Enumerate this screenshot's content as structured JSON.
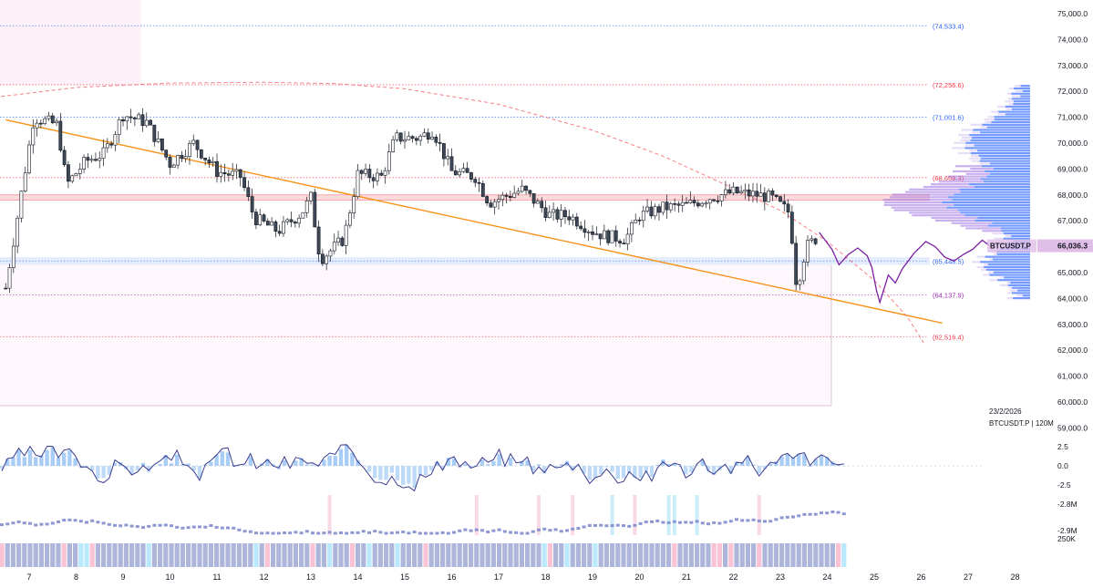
{
  "colors": {
    "up": "#ffffff",
    "down": "#3d4957",
    "wick": "#131722",
    "trendline": "#f7931a",
    "arc": "#f77c80",
    "projection": "#7b1fa2",
    "level_blue": "#2962ff",
    "level_red": "#f23645",
    "level_purple": "#9c27b0",
    "rect_pink": "#fce4f3",
    "vp_blue": "#2962ff",
    "vp_purple": "#9c6fe0",
    "osc_line": "#3a3c8f",
    "hist_pos": "#9ec8f5",
    "hist_neg": "#b7d6f7",
    "grid": "#f0f3fa",
    "price_tag_bg": "#e1bee7"
  },
  "chart_data": {
    "type": "candlestick",
    "symbol": "BTCUSDT.P",
    "timeframe_label": "BTCUSDT.P | 120M",
    "date_label": "23/2/2026",
    "last_price": "66,036.3",
    "price_axis": {
      "ylim": [
        59800,
        75400
      ],
      "ticks": [
        "75,000.0",
        "74,000.0",
        "73,000.0",
        "72,000.0",
        "71,000.0",
        "70,000.0",
        "69,000.0",
        "68,000.0",
        "67,000.0",
        "66,000.0",
        "65,000.0",
        "64,000.0",
        "63,000.0",
        "62,000.0",
        "61,000.0",
        "60,000.0",
        "59,000.0"
      ]
    },
    "x_axis": {
      "ticks": [
        "7",
        "8",
        "9",
        "10",
        "11",
        "12",
        "13",
        "14",
        "15",
        "16",
        "17",
        "18",
        "19",
        "20",
        "21",
        "22",
        "23",
        "24",
        "25",
        "26",
        "27",
        "28"
      ]
    },
    "levels": [
      {
        "label": "(74,533.4)",
        "value": 74533.4,
        "color": "blue"
      },
      {
        "label": "(72,256.6)",
        "value": 72256.6,
        "color": "red"
      },
      {
        "label": "(71,001.6)",
        "value": 71001.6,
        "color": "blue"
      },
      {
        "label": "(68,669.3)",
        "value": 68669.3,
        "color": "red"
      },
      {
        "label": "(65,448.5)",
        "value": 65448.5,
        "color": "blue"
      },
      {
        "label": "(64,137.9)",
        "value": 64137.9,
        "color": "purple"
      },
      {
        "label": "(62,516.4)",
        "value": 62516.4,
        "color": "red"
      }
    ],
    "zone": {
      "from": 67800,
      "to": 68000
    },
    "blue_zone": {
      "from": 65300,
      "to": 65600
    },
    "trendline": [
      [
        6.5,
        70900
      ],
      [
        26.45,
        63050
      ]
    ],
    "arc": [
      [
        6.4,
        71800
      ],
      [
        8,
        72150
      ],
      [
        10,
        72320
      ],
      [
        12,
        72350
      ],
      [
        13.5,
        72300
      ],
      [
        15,
        72100
      ],
      [
        17,
        71500
      ],
      [
        19,
        70500
      ],
      [
        20.5,
        69500
      ],
      [
        22,
        68250
      ],
      [
        23,
        67400
      ],
      [
        24,
        66200
      ],
      [
        25,
        64700
      ],
      [
        25.7,
        63300
      ],
      [
        26.05,
        62300
      ]
    ],
    "projection": [
      [
        23.83,
        66550
      ],
      [
        24.1,
        65900
      ],
      [
        24.25,
        65300
      ],
      [
        24.45,
        65700
      ],
      [
        24.65,
        65950
      ],
      [
        24.85,
        65650
      ],
      [
        24.95,
        65200
      ],
      [
        25.05,
        64300
      ],
      [
        25.12,
        63850
      ],
      [
        25.3,
        64900
      ],
      [
        25.45,
        64600
      ],
      [
        25.6,
        65150
      ],
      [
        25.85,
        65750
      ],
      [
        26.1,
        66200
      ],
      [
        26.3,
        66000
      ],
      [
        26.5,
        65600
      ],
      [
        26.7,
        65450
      ],
      [
        26.9,
        65700
      ],
      [
        27.1,
        65900
      ],
      [
        27.3,
        66250
      ],
      [
        27.45,
        66050
      ]
    ],
    "osc_axis_labels": [
      "2.5",
      "0.0",
      "-2.5"
    ],
    "indicator2_labels": [
      "-2.8M",
      "-2.9M"
    ],
    "indicator3_label": "250K"
  }
}
